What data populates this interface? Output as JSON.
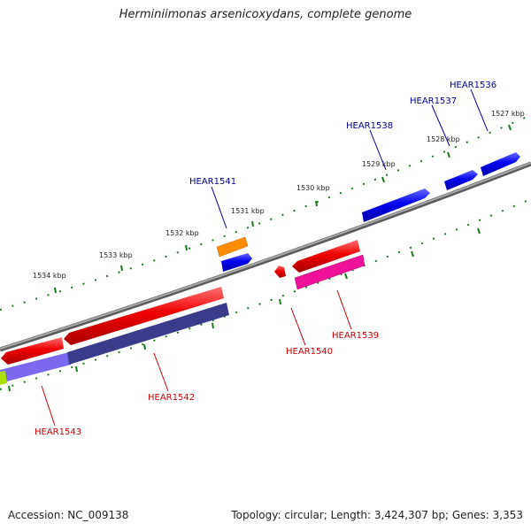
{
  "title": "Herminiimonas arsenicoxydans, complete genome",
  "accession": "Accession: NC_009138",
  "summary": "Topology: circular; Length: 3,424,307 bp; Genes: 3,353",
  "colors": {
    "backbone": "#808080",
    "forward_gene": "#0000ee",
    "reverse_gene": "#ee0000",
    "label_forward": "#000099",
    "label_reverse": "#cc0000",
    "tick": "#1a7a1a",
    "orange_feature": "#ff8c00",
    "magenta_feature": "#ee1199",
    "purple_feature": "#7b68ee",
    "dark_purple_feature": "#3b3b8c",
    "green_feature": "#aadd00"
  },
  "tick_labels": [
    "1527 kbp",
    "1528 kbp",
    "1529 kbp",
    "1530 kbp",
    "1531 kbp",
    "1532 kbp",
    "1533 kbp",
    "1534 kbp"
  ],
  "genes": [
    {
      "name": "HEAR1536",
      "strand": "forward"
    },
    {
      "name": "HEAR1537",
      "strand": "forward"
    },
    {
      "name": "HEAR1538",
      "strand": "forward"
    },
    {
      "name": "HEAR1541",
      "strand": "forward"
    },
    {
      "name": "HEAR1539",
      "strand": "reverse"
    },
    {
      "name": "HEAR1540",
      "strand": "reverse"
    },
    {
      "name": "HEAR1542",
      "strand": "reverse"
    },
    {
      "name": "HEAR1543",
      "strand": "reverse"
    }
  ]
}
